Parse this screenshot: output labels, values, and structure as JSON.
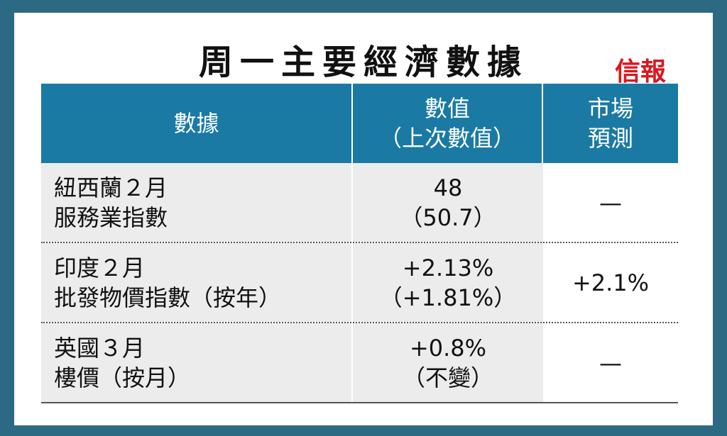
{
  "header": {
    "title": "周一主要經濟數據",
    "logo": "信報"
  },
  "table": {
    "columns": [
      [
        "數據"
      ],
      [
        "數值",
        "（上次數值）"
      ],
      [
        "市場",
        "預測"
      ]
    ],
    "rows": [
      [
        [
          "紐西蘭２月",
          "服務業指數"
        ],
        [
          "48",
          "（50.7）"
        ],
        [
          "—"
        ]
      ],
      [
        [
          "印度２月",
          "批發物價指數（按年）"
        ],
        [
          "+2.13%",
          "（+1.81%）"
        ],
        [
          "+2.1%"
        ]
      ],
      [
        [
          "英國３月",
          "樓價（按月）"
        ],
        [
          "+0.8%",
          "（不變）"
        ],
        [
          "—"
        ]
      ]
    ]
  }
}
